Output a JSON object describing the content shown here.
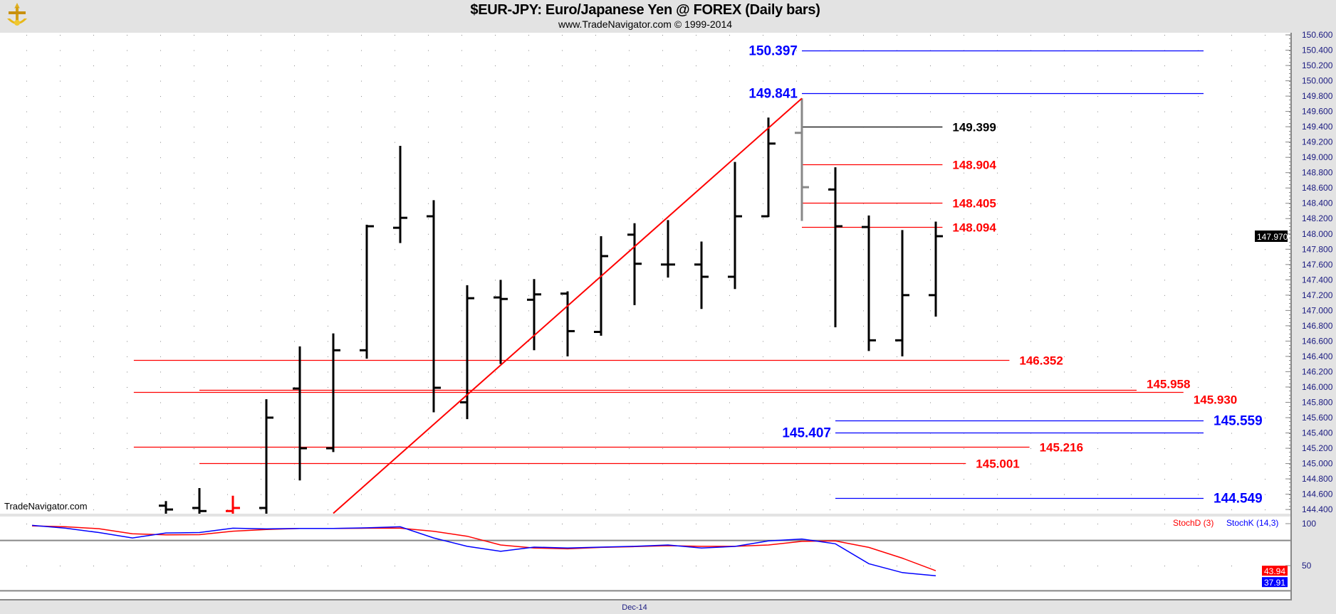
{
  "header": {
    "title": "$EUR-JPY:  Euro/Japanese Yen @ FOREX  (Daily bars)",
    "subtitle": "www.TradeNavigator.com © 1999-2014",
    "logo_icon": "sextant-logo-icon"
  },
  "watermark": "TradeNavigator.com",
  "colors": {
    "up_level": "#0000ff",
    "down_level": "#ff0000",
    "bar": "#000000",
    "highlight_bar": "#888888",
    "signal_bar": "#ff0000",
    "trendline": "#ff0000",
    "axis_text": "#1a1a80",
    "background": "#ffffff",
    "frame": "#e3e3e3"
  },
  "chart_data": [
    {
      "type": "bar",
      "style": "ohlc",
      "ylim": [
        144.4,
        150.6
      ],
      "grid": true,
      "y_ticks": [
        "150.600",
        "150.400",
        "150.200",
        "150.000",
        "149.800",
        "149.600",
        "149.400",
        "149.200",
        "149.000",
        "148.800",
        "148.600",
        "148.400",
        "148.200",
        "148.000",
        "147.800",
        "147.600",
        "147.400",
        "147.200",
        "147.000",
        "146.800",
        "146.600",
        "146.400",
        "146.200",
        "146.000",
        "145.800",
        "145.600",
        "145.400",
        "145.200",
        "145.000",
        "144.800",
        "144.600",
        "144.400"
      ],
      "x_ticks": [
        {
          "label": "Dec-14",
          "bar_index": 14
        }
      ],
      "last_price": "147.970",
      "bars": [
        {
          "o": 144.45,
          "h": 144.51,
          "l": 144.3,
          "c": 144.4
        },
        {
          "o": 144.42,
          "h": 144.68,
          "l": 144.3,
          "c": 144.38
        },
        {
          "o": 144.38,
          "h": 144.58,
          "l": 144.3,
          "c": 144.42,
          "color": "signal"
        },
        {
          "o": 144.42,
          "h": 145.84,
          "l": 144.3,
          "c": 145.6
        },
        {
          "o": 145.98,
          "h": 146.53,
          "l": 144.78,
          "c": 145.2
        },
        {
          "o": 145.2,
          "h": 146.7,
          "l": 145.15,
          "c": 146.48
        },
        {
          "o": 146.48,
          "h": 148.12,
          "l": 146.37,
          "c": 148.1
        },
        {
          "o": 148.08,
          "h": 149.15,
          "l": 147.88,
          "c": 148.21
        },
        {
          "o": 148.23,
          "h": 148.44,
          "l": 145.67,
          "c": 145.99
        },
        {
          "o": 145.8,
          "h": 147.33,
          "l": 145.58,
          "c": 147.16
        },
        {
          "o": 147.17,
          "h": 147.4,
          "l": 146.3,
          "c": 147.15
        },
        {
          "o": 147.14,
          "h": 147.41,
          "l": 146.48,
          "c": 147.21
        },
        {
          "o": 147.22,
          "h": 147.25,
          "l": 146.4,
          "c": 146.73
        },
        {
          "o": 146.72,
          "h": 147.97,
          "l": 146.67,
          "c": 147.71
        },
        {
          "o": 147.99,
          "h": 148.14,
          "l": 147.07,
          "c": 147.61
        },
        {
          "o": 147.6,
          "h": 148.18,
          "l": 147.43,
          "c": 147.6
        },
        {
          "o": 147.6,
          "h": 147.9,
          "l": 147.02,
          "c": 147.44
        },
        {
          "o": 147.44,
          "h": 148.94,
          "l": 147.28,
          "c": 148.23
        },
        {
          "o": 148.23,
          "h": 149.52,
          "l": 148.22,
          "c": 149.18
        },
        {
          "o": 149.32,
          "h": 149.77,
          "l": 148.17,
          "c": 148.61,
          "color": "highlight"
        },
        {
          "o": 148.58,
          "h": 148.87,
          "l": 146.78,
          "c": 148.1
        },
        {
          "o": 148.09,
          "h": 148.24,
          "l": 146.47,
          "c": 146.61
        },
        {
          "o": 146.61,
          "h": 148.05,
          "l": 146.4,
          "c": 147.2
        },
        {
          "o": 147.2,
          "h": 148.16,
          "l": 146.92,
          "c": 147.97
        }
      ],
      "trendline": {
        "from": {
          "bar_index": 5,
          "price": 144.35
        },
        "to": {
          "bar_index": 19,
          "price": 149.77
        }
      },
      "levels": [
        {
          "label": "150.397",
          "value": 150.397,
          "color": "#0000ff",
          "from_bar": 19,
          "to_bar": 31,
          "label_side": "left"
        },
        {
          "label": "149.841",
          "value": 149.841,
          "color": "#0000ff",
          "from_bar": 19,
          "to_bar": 31,
          "label_side": "left"
        },
        {
          "label": "149.399",
          "value": 149.399,
          "color": "#000000",
          "from_bar": 19,
          "to_bar": 23.2,
          "label_side": "right"
        },
        {
          "label": "148.904",
          "value": 148.904,
          "color": "#ff0000",
          "from_bar": 19,
          "to_bar": 23.2,
          "label_side": "right"
        },
        {
          "label": "148.405",
          "value": 148.405,
          "color": "#ff0000",
          "from_bar": 19,
          "to_bar": 23.2,
          "label_side": "right"
        },
        {
          "label": "148.094",
          "value": 148.094,
          "color": "#ff0000",
          "from_bar": 19,
          "to_bar": 23.2,
          "label_side": "right"
        },
        {
          "label": "146.352",
          "value": 146.352,
          "color": "#ff0000",
          "from_bar": -0.96,
          "to_bar": 25.2,
          "label_side": "right"
        },
        {
          "label": "145.958",
          "value": 145.958,
          "color": "#ff0000",
          "from_bar": 1,
          "to_bar": 29,
          "label_side": "right"
        },
        {
          "label": "145.930",
          "value": 145.93,
          "color": "#ff0000",
          "from_bar": -0.96,
          "to_bar": 30.4,
          "label_side": "right"
        },
        {
          "label": "145.559",
          "value": 145.559,
          "color": "#0000ff",
          "from_bar": 20,
          "to_bar": 31,
          "label_side": "right"
        },
        {
          "label": "145.407",
          "value": 145.407,
          "color": "#0000ff",
          "from_bar": 20,
          "to_bar": 31,
          "label_side": "left"
        },
        {
          "label": "145.216",
          "value": 145.216,
          "color": "#ff0000",
          "from_bar": -0.96,
          "to_bar": 25.8,
          "label_side": "right"
        },
        {
          "label": "145.001",
          "value": 145.001,
          "color": "#ff0000",
          "from_bar": 1,
          "to_bar": 23.9,
          "label_side": "right"
        },
        {
          "label": "144.549",
          "value": 144.549,
          "color": "#0000ff",
          "from_bar": 20,
          "to_bar": 31,
          "label_side": "right"
        }
      ]
    },
    {
      "type": "line",
      "ylim": [
        0,
        100
      ],
      "y_ticks": [
        "100",
        "50"
      ],
      "reference_lines": [
        80,
        20
      ],
      "first_bar_index": -4,
      "series": [
        {
          "name": "StochD (3)",
          "color": "#ff0000",
          "last_value": "43.94",
          "values": [
            97.4,
            96.3,
            94,
            88,
            86.6,
            86.9,
            91,
            93,
            94.3,
            94.3,
            94.6,
            94.6,
            90.9,
            85,
            74.6,
            71,
            70,
            71.7,
            72.6,
            73.7,
            73,
            73,
            74.6,
            78.9,
            79.4,
            71.7,
            58.9,
            43.94
          ]
        },
        {
          "name": "StochK (14,3)",
          "color": "#0000ff",
          "last_value": "37.91",
          "values": [
            98,
            94.6,
            89.4,
            83,
            88.9,
            89.4,
            94.6,
            93.7,
            94.3,
            94.3,
            95,
            96.3,
            83,
            73,
            67,
            72,
            71,
            72,
            73,
            74.6,
            70.9,
            72.9,
            79.4,
            81.7,
            76,
            52.3,
            41.7,
            37.91
          ]
        }
      ]
    }
  ]
}
